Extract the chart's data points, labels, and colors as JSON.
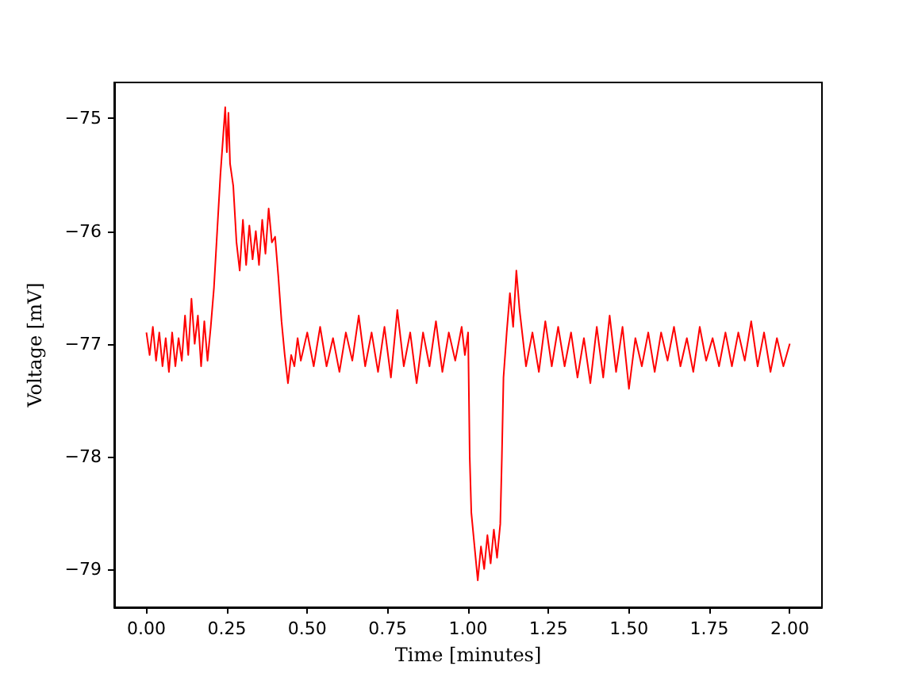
{
  "chart_data": {
    "type": "line",
    "xlabel": "Time [minutes]",
    "ylabel": "Voltage [mV]",
    "xlim": [
      -0.1,
      2.1
    ],
    "ylim": [
      -79.34,
      -74.68
    ],
    "xticks": [
      {
        "value": 0,
        "label": "0.00"
      },
      {
        "value": 0.25,
        "label": "0.25"
      },
      {
        "value": 0.5,
        "label": "0.50"
      },
      {
        "value": 0.75,
        "label": "0.75"
      },
      {
        "value": 1,
        "label": "1.00"
      },
      {
        "value": 1.25,
        "label": "1.25"
      },
      {
        "value": 1.5,
        "label": "1.50"
      },
      {
        "value": 1.75,
        "label": "1.75"
      },
      {
        "value": 2,
        "label": "2.00"
      }
    ],
    "yticks": [
      {
        "value": -79,
        "label": "−79"
      },
      {
        "value": -78,
        "label": "−78"
      },
      {
        "value": -77,
        "label": "−77"
      },
      {
        "value": -76,
        "label": "−76"
      },
      {
        "value": -75,
        "label": "−75"
      }
    ],
    "grid": false,
    "marker": "none",
    "line_style": "solid",
    "series": [
      {
        "color": "#ff0000",
        "x": [
          0,
          0.01,
          0.02,
          0.03,
          0.04,
          0.05,
          0.06,
          0.07,
          0.08,
          0.09,
          0.1,
          0.11,
          0.12,
          0.13,
          0.14,
          0.15,
          0.16,
          0.17,
          0.18,
          0.19,
          0.2,
          0.21,
          0.22,
          0.23,
          0.24,
          0.245,
          0.25,
          0.255,
          0.26,
          0.27,
          0.28,
          0.29,
          0.3,
          0.31,
          0.32,
          0.33,
          0.34,
          0.35,
          0.36,
          0.37,
          0.38,
          0.39,
          0.4,
          0.41,
          0.42,
          0.43,
          0.44,
          0.45,
          0.46,
          0.47,
          0.48,
          0.5,
          0.52,
          0.54,
          0.56,
          0.58,
          0.6,
          0.62,
          0.64,
          0.66,
          0.68,
          0.7,
          0.72,
          0.74,
          0.76,
          0.78,
          0.8,
          0.82,
          0.84,
          0.86,
          0.88,
          0.9,
          0.92,
          0.94,
          0.96,
          0.98,
          0.99,
          1,
          1.005,
          1.01,
          1.02,
          1.03,
          1.04,
          1.05,
          1.06,
          1.07,
          1.08,
          1.09,
          1.1,
          1.105,
          1.11,
          1.12,
          1.13,
          1.14,
          1.15,
          1.16,
          1.17,
          1.18,
          1.2,
          1.22,
          1.24,
          1.26,
          1.28,
          1.3,
          1.32,
          1.34,
          1.36,
          1.38,
          1.4,
          1.42,
          1.44,
          1.46,
          1.48,
          1.5,
          1.52,
          1.54,
          1.56,
          1.58,
          1.6,
          1.62,
          1.64,
          1.66,
          1.68,
          1.7,
          1.72,
          1.74,
          1.76,
          1.78,
          1.8,
          1.82,
          1.84,
          1.86,
          1.88,
          1.9,
          1.92,
          1.94,
          1.96,
          1.98,
          2
        ],
        "values": [
          -76.9,
          -77.1,
          -76.85,
          -77.15,
          -76.9,
          -77.2,
          -76.95,
          -77.25,
          -76.9,
          -77.2,
          -76.95,
          -77.15,
          -76.75,
          -77.1,
          -76.6,
          -77,
          -76.75,
          -77.2,
          -76.8,
          -77.15,
          -76.85,
          -76.5,
          -76,
          -75.5,
          -75.1,
          -74.9,
          -75.3,
          -74.95,
          -75.4,
          -75.6,
          -76.1,
          -76.35,
          -75.9,
          -76.3,
          -75.95,
          -76.25,
          -76,
          -76.3,
          -75.9,
          -76.2,
          -75.8,
          -76.1,
          -76.05,
          -76.4,
          -76.8,
          -77.1,
          -77.35,
          -77.1,
          -77.2,
          -76.95,
          -77.15,
          -76.9,
          -77.2,
          -76.85,
          -77.2,
          -76.95,
          -77.25,
          -76.9,
          -77.15,
          -76.75,
          -77.2,
          -76.9,
          -77.25,
          -76.85,
          -77.3,
          -76.7,
          -77.2,
          -76.9,
          -77.35,
          -76.9,
          -77.2,
          -76.8,
          -77.25,
          -76.9,
          -77.15,
          -76.85,
          -77.1,
          -76.9,
          -78,
          -78.5,
          -78.8,
          -79.1,
          -78.8,
          -79,
          -78.7,
          -78.95,
          -78.65,
          -78.9,
          -78.6,
          -78,
          -77.3,
          -76.9,
          -76.55,
          -76.85,
          -76.35,
          -76.7,
          -76.95,
          -77.2,
          -76.9,
          -77.25,
          -76.8,
          -77.2,
          -76.85,
          -77.2,
          -76.9,
          -77.3,
          -76.95,
          -77.35,
          -76.85,
          -77.3,
          -76.75,
          -77.25,
          -76.85,
          -77.4,
          -76.95,
          -77.2,
          -76.9,
          -77.25,
          -76.9,
          -77.15,
          -76.85,
          -77.2,
          -76.95,
          -77.25,
          -76.85,
          -77.15,
          -76.95,
          -77.2,
          -76.9,
          -77.2,
          -76.9,
          -77.15,
          -76.8,
          -77.2,
          -76.9,
          -77.25,
          -76.95,
          -77.2,
          -77
        ]
      }
    ]
  }
}
